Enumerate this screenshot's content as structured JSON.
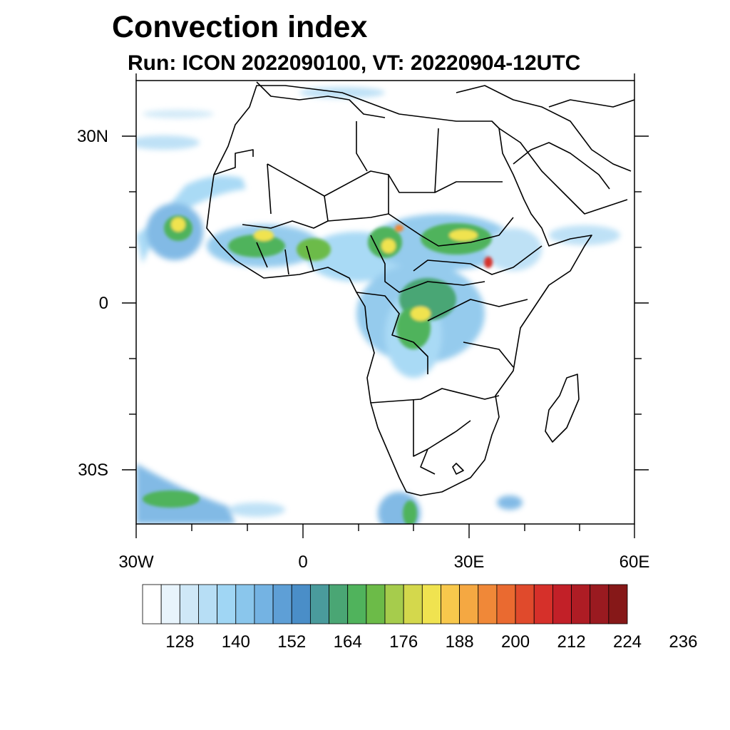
{
  "title": "Convection index",
  "subtitle": "Run: ICON 2022090100,  VT: 20220904-12UTC",
  "map": {
    "extent": {
      "lon": [
        -30,
        60
      ],
      "lat": [
        -40,
        40
      ]
    },
    "lat_labels": [
      "30N",
      "0",
      "30S"
    ],
    "lat_values": [
      30,
      0,
      -30
    ],
    "lon_labels": [
      "30W",
      "0",
      "30E",
      "60E"
    ],
    "lon_values": [
      -30,
      0,
      30,
      60
    ],
    "land_outline_color": "#000000"
  },
  "colorbar": {
    "labels": [
      "128",
      "140",
      "152",
      "164",
      "176",
      "188",
      "200",
      "212",
      "224",
      "236"
    ],
    "colors": [
      "#ffffff",
      "#e8f4fc",
      "#cfe8f7",
      "#b7def5",
      "#a0d6f4",
      "#8ac6ec",
      "#74b3e3",
      "#5e9fd6",
      "#4a8ec8",
      "#4a9b9c",
      "#4aa674",
      "#50b35c",
      "#6cbb48",
      "#a6cc4c",
      "#d4d84c",
      "#f0e350",
      "#f8c84c",
      "#f5a842",
      "#f08838",
      "#ea6a30",
      "#e04a2c",
      "#d6302a",
      "#c22028",
      "#ae1c24",
      "#9a1a20",
      "#861818"
    ]
  }
}
